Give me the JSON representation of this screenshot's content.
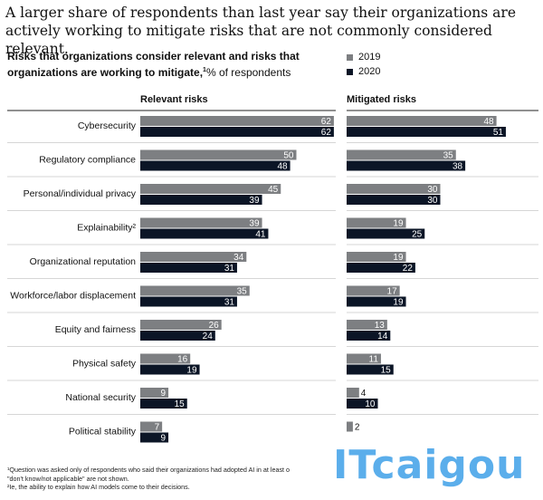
{
  "headline": "A larger share of respondents than last year say their organizations are actively working to mitigate risks that are not commonly considered relevant.",
  "subtitle": {
    "main": "Risks that organizations consider relevant and risks that organizations are working to mitigate,",
    "footnote_mark": "1",
    "unit": "% of respondents"
  },
  "legend": {
    "items": [
      {
        "label": "2019",
        "color": "#7d7f82"
      },
      {
        "label": "2020",
        "color": "#0b1526"
      }
    ]
  },
  "panels": {
    "relevant_title": "Relevant risks",
    "mitigated_title": "Mitigated risks"
  },
  "chart_data": {
    "type": "bar",
    "orientation": "horizontal",
    "categories": [
      "Cybersecurity",
      "Regulatory compliance",
      "Personal/individual privacy",
      "Explainability²",
      "Organizational reputation",
      "Workforce/labor displacement",
      "Equity and fairness",
      "Physical safety",
      "National security",
      "Political stability"
    ],
    "panels": [
      {
        "title": "Relevant risks",
        "series": [
          {
            "name": "2019",
            "values": [
              62,
              50,
              45,
              39,
              34,
              35,
              26,
              16,
              9,
              7
            ]
          },
          {
            "name": "2020",
            "values": [
              62,
              48,
              39,
              41,
              31,
              31,
              24,
              19,
              15,
              9
            ]
          }
        ]
      },
      {
        "title": "Mitigated risks",
        "series": [
          {
            "name": "2019",
            "values": [
              48,
              35,
              30,
              19,
              19,
              17,
              13,
              11,
              4,
              2
            ]
          },
          {
            "name": "2020",
            "values": [
              51,
              38,
              30,
              25,
              22,
              19,
              14,
              15,
              10,
              null
            ]
          }
        ]
      }
    ],
    "colors": {
      "2019": "#7d7f82",
      "2020": "#0b1526"
    }
  },
  "footnotes": [
    "¹Question was asked only of respondents who said their organizations had adopted AI in at least o",
    "\"don't know/not applicable\" are not shown.",
    "²Ie, the ability to explain how AI models come to their decisions."
  ],
  "watermark": "ITcaigou"
}
